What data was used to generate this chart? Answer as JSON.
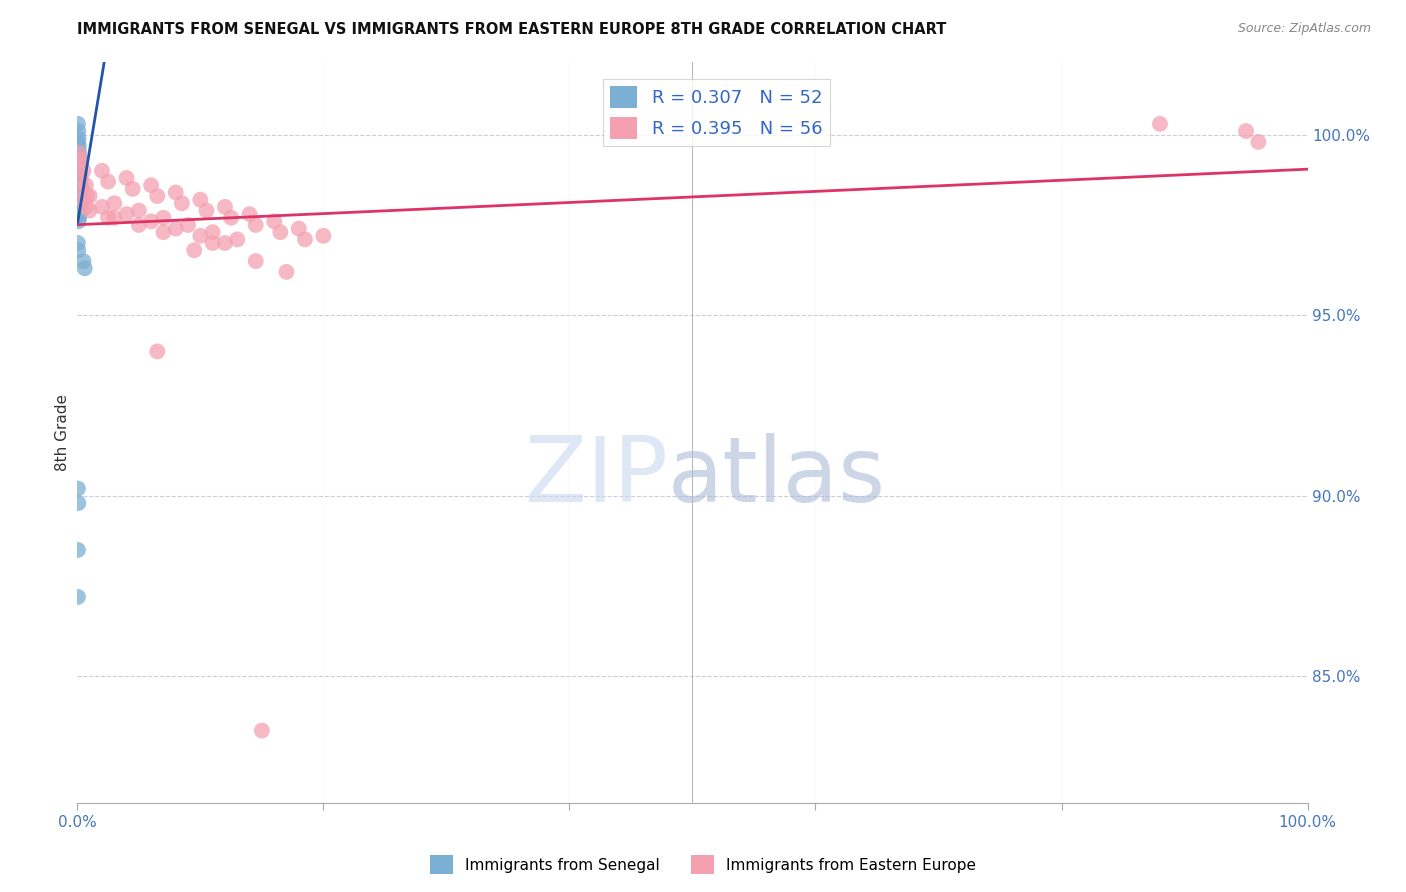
{
  "title": "IMMIGRANTS FROM SENEGAL VS IMMIGRANTS FROM EASTERN EUROPE 8TH GRADE CORRELATION CHART",
  "source": "Source: ZipAtlas.com",
  "ylabel": "8th Grade",
  "right_yticks": [
    85.0,
    90.0,
    95.0,
    100.0
  ],
  "x_range": [
    0.0,
    100.0
  ],
  "y_range": [
    81.5,
    102.0
  ],
  "legend_blue": "R = 0.307   N = 52",
  "legend_pink": "R = 0.395   N = 56",
  "blue_color": "#7BAFD4",
  "pink_color": "#F4A0B0",
  "line_blue_color": "#2255AA",
  "line_pink_color": "#DD3366",
  "blue_x": [
    0.05,
    0.08,
    0.1,
    0.12,
    0.15,
    0.18,
    0.2,
    0.22,
    0.25,
    0.28,
    0.05,
    0.08,
    0.1,
    0.12,
    0.15,
    0.18,
    0.2,
    0.22,
    0.25,
    0.28,
    0.05,
    0.08,
    0.1,
    0.12,
    0.15,
    0.18,
    0.2,
    0.22,
    0.25,
    0.05,
    0.08,
    0.1,
    0.12,
    0.15,
    0.18,
    0.2,
    0.05,
    0.08,
    0.1,
    0.12,
    0.15,
    0.05,
    0.08,
    0.1,
    0.05,
    0.08,
    0.05,
    0.08,
    0.5,
    0.6,
    0.05,
    0.05
  ],
  "blue_y": [
    100.3,
    100.1,
    99.9,
    99.7,
    99.5,
    99.3,
    99.1,
    98.9,
    98.7,
    98.5,
    99.8,
    99.6,
    99.4,
    99.2,
    99.0,
    98.8,
    98.6,
    98.4,
    98.2,
    98.0,
    99.5,
    99.3,
    99.1,
    98.9,
    98.7,
    98.5,
    98.3,
    98.1,
    97.9,
    99.0,
    98.8,
    98.6,
    98.4,
    98.2,
    98.0,
    97.8,
    98.5,
    98.3,
    98.1,
    97.9,
    97.7,
    98.0,
    97.8,
    97.6,
    97.0,
    96.8,
    90.2,
    89.8,
    96.5,
    96.3,
    88.5,
    87.2
  ],
  "pink_x": [
    0.1,
    0.3,
    2.0,
    4.0,
    6.0,
    8.0,
    10.0,
    12.0,
    14.0,
    16.0,
    18.0,
    20.0,
    0.2,
    0.5,
    2.5,
    4.5,
    6.5,
    8.5,
    10.5,
    12.5,
    14.5,
    16.5,
    18.5,
    0.3,
    0.7,
    1.0,
    3.0,
    5.0,
    7.0,
    9.0,
    11.0,
    13.0,
    0.4,
    0.8,
    2.0,
    4.0,
    6.0,
    8.0,
    10.0,
    12.0,
    0.5,
    1.0,
    3.0,
    5.0,
    7.0,
    11.0,
    0.7,
    2.5,
    9.5,
    14.5,
    88.0,
    95.0,
    96.0,
    6.5,
    17.0,
    15.0
  ],
  "pink_y": [
    99.5,
    99.3,
    99.0,
    98.8,
    98.6,
    98.4,
    98.2,
    98.0,
    97.8,
    97.6,
    97.4,
    97.2,
    99.2,
    99.0,
    98.7,
    98.5,
    98.3,
    98.1,
    97.9,
    97.7,
    97.5,
    97.3,
    97.1,
    98.8,
    98.6,
    98.3,
    98.1,
    97.9,
    97.7,
    97.5,
    97.3,
    97.1,
    98.5,
    98.3,
    98.0,
    97.8,
    97.6,
    97.4,
    97.2,
    97.0,
    98.2,
    97.9,
    97.7,
    97.5,
    97.3,
    97.0,
    98.0,
    97.7,
    96.8,
    96.5,
    100.3,
    100.1,
    99.8,
    94.0,
    96.2,
    83.5
  ]
}
